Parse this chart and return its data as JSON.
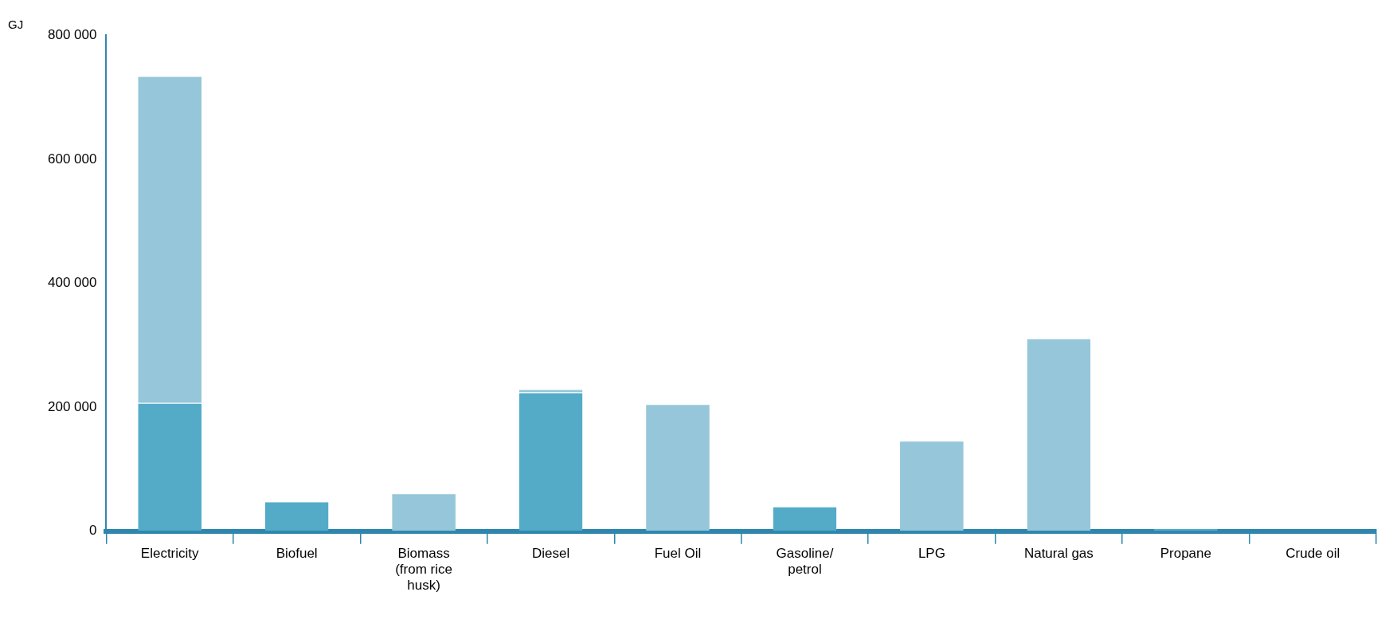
{
  "chart_data": {
    "type": "bar",
    "ylabel": "GJ",
    "stacked": true,
    "categories": [
      "Electricity",
      "Biofuel",
      "Biomass (from rice husk)",
      "Diesel",
      "Fuel Oil",
      "Gasoline/ petrol",
      "LPG",
      "Natural gas",
      "Propane",
      "Crude oil"
    ],
    "series": [
      {
        "color": "#53abc8",
        "values": [
          207000,
          48000,
          null,
          224000,
          null,
          40000,
          null,
          null,
          5000,
          null
        ]
      },
      {
        "color": "#96c6d9",
        "values": [
          527000,
          null,
          61000,
          5000,
          205000,
          null,
          146000,
          311000,
          null,
          null
        ]
      }
    ],
    "ylim": [
      0,
      800000
    ],
    "yticks": [
      {
        "value": 0,
        "label": "0"
      },
      {
        "value": 200000,
        "label": "200 000"
      },
      {
        "value": 400000,
        "label": "400 000"
      },
      {
        "value": 600000,
        "label": "600 000"
      },
      {
        "value": 800000,
        "label": "800 000"
      }
    ],
    "grid": false,
    "legend": false
  }
}
